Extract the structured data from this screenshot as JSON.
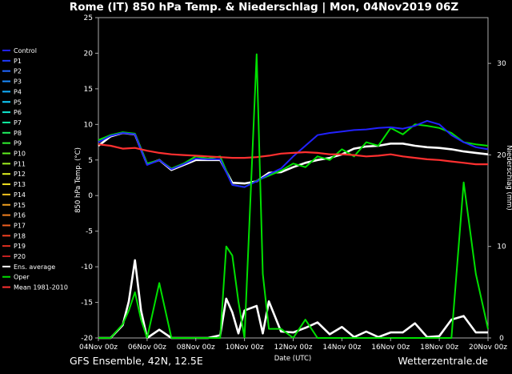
{
  "chart_data": {
    "type": "line",
    "title": "Rome  (IT)  850 hPa Temp. & Niederschlag | Mon, 04Nov2019 06Z",
    "xlabel": "Date (UTC)",
    "ylabel": "850 hPa Temp. (°C)",
    "y2label": "Niederschlag (mm)",
    "ylim": [
      -20,
      25
    ],
    "y2lim": [
      0,
      35
    ],
    "xlim": [
      0,
      16
    ],
    "x_tick_labels": [
      "04Nov 00z",
      "06Nov 00z",
      "08Nov 00z",
      "10Nov 00z",
      "12Nov 00z",
      "14Nov 00z",
      "16Nov 00z",
      "18Nov 00z",
      "20Nov 00z"
    ],
    "y_ticks": [
      -20,
      -15,
      -10,
      -5,
      0,
      5,
      10,
      15,
      20,
      25
    ],
    "y2_ticks": [
      0,
      10,
      20,
      30
    ],
    "grid": false,
    "legend_position": "left",
    "footer_left": "GFS Ensemble, 42N, 12.5E",
    "footer_right": "Wetterzentrale.de",
    "legend": [
      {
        "name": "Control",
        "color": "#2222ff"
      },
      {
        "name": "P1",
        "color": "#1f3cff"
      },
      {
        "name": "P2",
        "color": "#1f66ff"
      },
      {
        "name": "P3",
        "color": "#1a8cff"
      },
      {
        "name": "P4",
        "color": "#12b0ff"
      },
      {
        "name": "P5",
        "color": "#10d0ff"
      },
      {
        "name": "P6",
        "color": "#10e8d0"
      },
      {
        "name": "P7",
        "color": "#10f0a0"
      },
      {
        "name": "P8",
        "color": "#20f060"
      },
      {
        "name": "P9",
        "color": "#30f030"
      },
      {
        "name": "P10",
        "color": "#60f020"
      },
      {
        "name": "P11",
        "color": "#a0f020"
      },
      {
        "name": "P12",
        "color": "#e0f020"
      },
      {
        "name": "P13",
        "color": "#f0e020"
      },
      {
        "name": "P14",
        "color": "#f0c020"
      },
      {
        "name": "P15",
        "color": "#f0a020"
      },
      {
        "name": "P16",
        "color": "#f08020"
      },
      {
        "name": "P17",
        "color": "#f06020"
      },
      {
        "name": "P18",
        "color": "#f04020"
      },
      {
        "name": "P19",
        "color": "#e03020"
      },
      {
        "name": "P20",
        "color": "#c02020"
      },
      {
        "name": "Ens. average",
        "color": "#ffffff"
      },
      {
        "name": "Oper",
        "color": "#00e000"
      },
      {
        "name": "Mean 1981-2010",
        "color": "#ff3030"
      }
    ],
    "series": [
      {
        "name": "Ens. average",
        "axis": "temp",
        "color": "#ffffff",
        "x": [
          0,
          0.5,
          1,
          1.5,
          2,
          2.5,
          3,
          3.5,
          4,
          4.5,
          5,
          5.5,
          6,
          6.5,
          7,
          7.5,
          8,
          8.5,
          9,
          9.5,
          10,
          10.5,
          11,
          11.5,
          12,
          12.5,
          13,
          13.5,
          14,
          14.5,
          15,
          15.5,
          16
        ],
        "y": [
          7,
          8.3,
          8.8,
          8.6,
          4.4,
          5,
          3.6,
          4.3,
          5,
          5,
          5,
          1.8,
          1.7,
          2,
          3.2,
          3.3,
          4,
          4.6,
          5,
          5.3,
          5.8,
          6.6,
          6.9,
          7,
          7.3,
          7.3,
          7,
          6.8,
          6.7,
          6.5,
          6.2,
          6,
          5.8
        ]
      },
      {
        "name": "Oper",
        "axis": "temp",
        "color": "#00e000",
        "x": [
          0,
          0.5,
          1,
          1.5,
          2,
          2.5,
          3,
          3.5,
          4,
          4.5,
          5,
          5.5,
          6,
          6.5,
          7,
          7.5,
          8,
          8.5,
          9,
          9.5,
          10,
          10.5,
          11,
          11.5,
          12,
          12.5,
          13,
          13.5,
          14,
          14.5,
          15,
          15.5,
          16
        ],
        "y": [
          7.8,
          8.5,
          8.9,
          8.7,
          4.5,
          5,
          3.8,
          4.5,
          5.5,
          5.2,
          5.5,
          1.5,
          1.2,
          2.1,
          2.8,
          3.5,
          4.5,
          4,
          5.5,
          5,
          6.5,
          5.5,
          7.5,
          7,
          9.5,
          8.6,
          10,
          9.8,
          9.5,
          8.8,
          7.5,
          7.2,
          7
        ]
      },
      {
        "name": "Control",
        "axis": "temp",
        "color": "#2222ff",
        "x": [
          0,
          0.5,
          1,
          1.5,
          2,
          2.5,
          3,
          3.5,
          4,
          4.5,
          5,
          5.5,
          6,
          6.5,
          7,
          7.5,
          8,
          8.5,
          9,
          9.5,
          10,
          10.5,
          11,
          11.5,
          12,
          12.5,
          13,
          13.5,
          14,
          14.5,
          15,
          15.5,
          16
        ],
        "y": [
          7.5,
          8.4,
          8.8,
          8.6,
          4.3,
          5,
          3.7,
          4.4,
          5.2,
          5.1,
          5.1,
          1.5,
          1.2,
          2,
          3,
          3.8,
          5.5,
          7,
          8.5,
          8.8,
          9,
          9.2,
          9.3,
          9.5,
          9.6,
          9.4,
          9.8,
          10.5,
          10,
          8.5,
          7.5,
          6.8,
          6.5
        ]
      },
      {
        "name": "Mean 1981-2010",
        "axis": "temp",
        "color": "#ff3030",
        "x": [
          0,
          0.5,
          1,
          1.5,
          2,
          2.5,
          3,
          3.5,
          4,
          4.5,
          5,
          5.5,
          6,
          6.5,
          7,
          7.5,
          8,
          8.5,
          9,
          9.5,
          10,
          10.5,
          11,
          11.5,
          12,
          12.5,
          13,
          13.5,
          14,
          14.5,
          15,
          15.5,
          16
        ],
        "y": [
          7.2,
          7,
          6.6,
          6.7,
          6.3,
          6,
          5.8,
          5.7,
          5.6,
          5.5,
          5.4,
          5.3,
          5.3,
          5.4,
          5.6,
          5.9,
          6,
          6.1,
          6,
          5.8,
          5.8,
          5.7,
          5.5,
          5.6,
          5.8,
          5.5,
          5.3,
          5.1,
          5,
          4.8,
          4.6,
          4.4,
          4.4
        ]
      },
      {
        "name": "Ens. average",
        "axis": "precip",
        "color": "#ffffff",
        "x": [
          0,
          0.5,
          1,
          1.25,
          1.5,
          1.75,
          2,
          2.5,
          3,
          3.5,
          4,
          4.5,
          5,
          5.25,
          5.5,
          5.75,
          6,
          6.5,
          6.75,
          7,
          7.5,
          8,
          8.5,
          9,
          9.5,
          10,
          10.5,
          11,
          11.5,
          12,
          12.5,
          13,
          13.5,
          14,
          14.5,
          15,
          15.5,
          16
        ],
        "y": [
          0,
          0,
          1.4,
          4,
          8.5,
          3,
          0,
          0.9,
          0,
          0,
          0,
          0,
          0.3,
          4.3,
          2.8,
          0.5,
          3,
          3.5,
          0.5,
          4,
          0.7,
          0.6,
          1.1,
          1.7,
          0.4,
          1.2,
          0.1,
          0.7,
          0.1,
          0.6,
          0.6,
          1.6,
          0.1,
          0.2,
          2,
          2.4,
          0.6,
          0.6
        ]
      },
      {
        "name": "Oper",
        "axis": "precip",
        "color": "#00e000",
        "x": [
          0,
          0.5,
          1,
          1.25,
          1.5,
          1.75,
          2,
          2.5,
          3,
          3.5,
          4,
          4.5,
          5,
          5.25,
          5.5,
          5.75,
          6,
          6.5,
          6.75,
          7,
          7.5,
          8,
          8.5,
          9,
          9.5,
          10,
          10.5,
          11,
          11.5,
          12,
          12.5,
          13,
          13.5,
          14,
          14.5,
          15,
          15.5,
          16
        ],
        "y": [
          0,
          0,
          1.5,
          3,
          5,
          2,
          0,
          6,
          0,
          0,
          0,
          0,
          0,
          10,
          9,
          4,
          0,
          31,
          7,
          1,
          1,
          0,
          2,
          0,
          0,
          0,
          0,
          0,
          0,
          0,
          0,
          0,
          0,
          0,
          0,
          17,
          7,
          1
        ]
      }
    ]
  }
}
